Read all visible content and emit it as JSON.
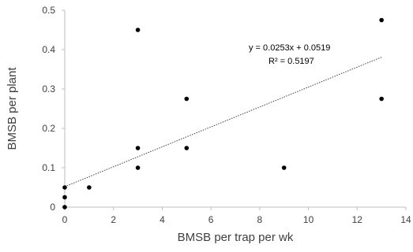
{
  "chart_data": {
    "type": "scatter",
    "title": "",
    "xlabel": "BMSB per trap per wk",
    "ylabel": "BMSB per plant",
    "xlim": [
      0,
      14
    ],
    "ylim": [
      0,
      0.5
    ],
    "x_ticks": [
      "0",
      "2",
      "4",
      "6",
      "8",
      "10",
      "12",
      "14"
    ],
    "y_ticks": [
      "0",
      "0.1",
      "0.2",
      "0.3",
      "0.4",
      "0.5"
    ],
    "grid": false,
    "legend": "none",
    "point_color": "#000000",
    "series": [
      {
        "points": [
          {
            "x": 0,
            "y": 0
          },
          {
            "x": 0,
            "y": 0.025
          },
          {
            "x": 0,
            "y": 0.05
          },
          {
            "x": 1,
            "y": 0.05
          },
          {
            "x": 3,
            "y": 0.1
          },
          {
            "x": 3,
            "y": 0.15
          },
          {
            "x": 3,
            "y": 0.45
          },
          {
            "x": 5,
            "y": 0.15
          },
          {
            "x": 5,
            "y": 0.275
          },
          {
            "x": 9,
            "y": 0.1
          },
          {
            "x": 13,
            "y": 0.275
          },
          {
            "x": 13,
            "y": 0.475
          }
        ]
      }
    ],
    "trendline": {
      "type": "linear",
      "slope": 0.0253,
      "intercept": 0.0519,
      "x_range": [
        0,
        13
      ],
      "style": "dotted"
    },
    "annotations": {
      "equation": "y = 0.0253x + 0.0519",
      "r_squared": "R² = 0.5197"
    }
  }
}
